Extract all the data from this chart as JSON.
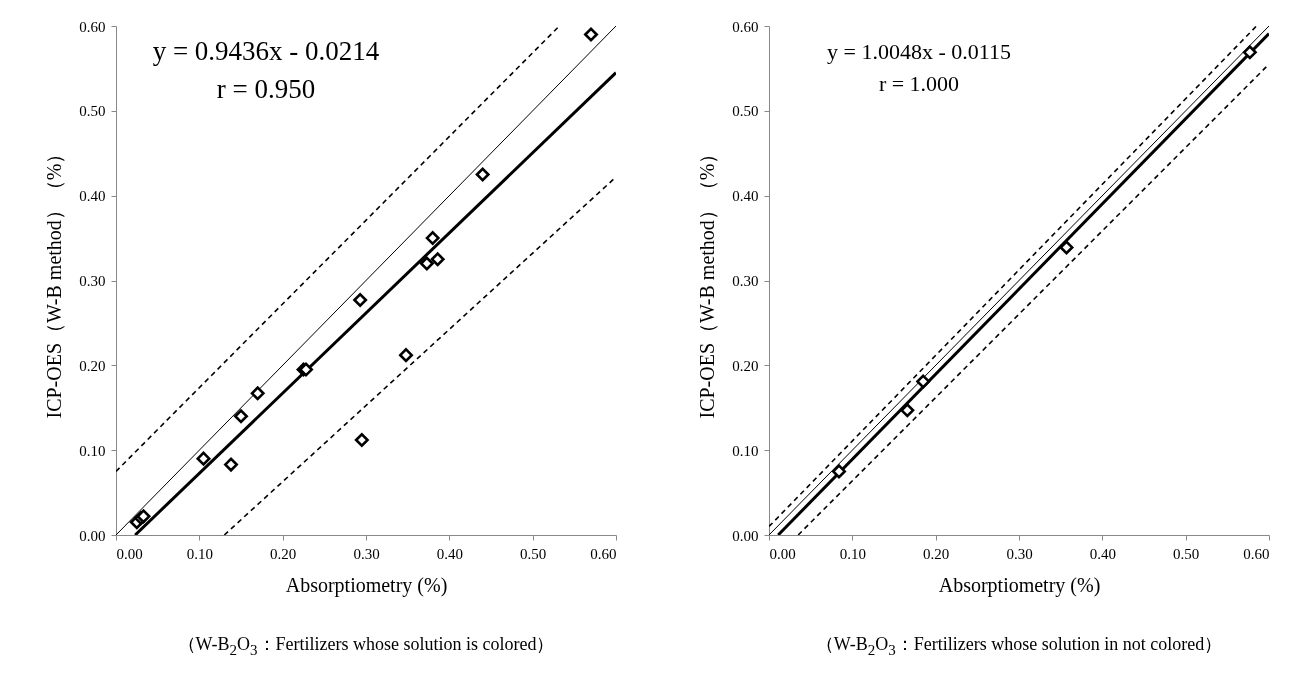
{
  "chart_data": [
    {
      "type": "scatter",
      "xlabel": "Absorptiometry (%)",
      "ylabel": "ICP-OES（W-B method）（%）",
      "xlim": [
        0,
        0.6
      ],
      "ylim": [
        0,
        0.6
      ],
      "xticks": [
        {
          "value": 0,
          "label": "0.00"
        },
        {
          "value": 0.1,
          "label": "0.10"
        },
        {
          "value": 0.2,
          "label": "0.20"
        },
        {
          "value": 0.3,
          "label": "0.30"
        },
        {
          "value": 0.4,
          "label": "0.40"
        },
        {
          "value": 0.5,
          "label": "0.50"
        },
        {
          "value": 0.6,
          "label": "0.60"
        }
      ],
      "yticks": [
        {
          "value": 0,
          "label": "0.00"
        },
        {
          "value": 0.1,
          "label": "0.10"
        },
        {
          "value": 0.2,
          "label": "0.20"
        },
        {
          "value": 0.3,
          "label": "0.30"
        },
        {
          "value": 0.4,
          "label": "0.40"
        },
        {
          "value": 0.5,
          "label": "0.50"
        },
        {
          "value": 0.6,
          "label": "0.60"
        }
      ],
      "marker": "diamond",
      "annotations": [
        "y = 0.9436x - 0.0214",
        "r = 0.950",
        "（W-B$_{2}$O$_{3}$：Fertilizers whose solution is colored）"
      ],
      "series": [
        {
          "color": "#000000",
          "x": [
            0.025,
            0.03,
            0.033,
            0.105,
            0.138,
            0.15,
            0.17,
            0.225,
            0.228,
            0.293,
            0.295,
            0.348,
            0.373,
            0.38,
            0.386,
            0.44,
            0.57
          ],
          "values": [
            0.015,
            0.02,
            0.022,
            0.09,
            0.083,
            0.14,
            0.167,
            0.195,
            0.195,
            0.277,
            0.112,
            0.212,
            0.32,
            0.35,
            0.325,
            0.425,
            0.59
          ]
        },
        {
          "type": "line",
          "marker": "none",
          "color": "#000000",
          "x": [
            0.023,
            0.6
          ],
          "values": [
            0,
            0.545
          ]
        },
        {
          "type": "line",
          "marker": "none",
          "color": "#000000",
          "x": [
            0,
            0.6
          ],
          "values": [
            0,
            0.6
          ]
        },
        {
          "type": "line",
          "marker": "none",
          "color": "#000000",
          "line_style": "dashed",
          "x": [
            0,
            0.532
          ],
          "values": [
            0.075,
            0.6
          ]
        },
        {
          "type": "line",
          "marker": "none",
          "color": "#000000",
          "line_style": "dashed",
          "x": [
            0.13,
            0.6
          ],
          "values": [
            0,
            0.422
          ]
        }
      ]
    },
    {
      "type": "scatter",
      "xlabel": "Absorptiometry (%)",
      "ylabel": "ICP-OES（W-B method）（%）",
      "xlim": [
        0,
        0.6
      ],
      "ylim": [
        0,
        0.6
      ],
      "xticks": [
        {
          "value": 0,
          "label": "0.00"
        },
        {
          "value": 0.1,
          "label": "0.10"
        },
        {
          "value": 0.2,
          "label": "0.20"
        },
        {
          "value": 0.3,
          "label": "0.30"
        },
        {
          "value": 0.4,
          "label": "0.40"
        },
        {
          "value": 0.5,
          "label": "0.50"
        },
        {
          "value": 0.6,
          "label": "0.60"
        }
      ],
      "yticks": [
        {
          "value": 0,
          "label": "0.00"
        },
        {
          "value": 0.1,
          "label": "0.10"
        },
        {
          "value": 0.2,
          "label": "0.20"
        },
        {
          "value": 0.3,
          "label": "0.30"
        },
        {
          "value": 0.4,
          "label": "0.40"
        },
        {
          "value": 0.5,
          "label": "0.50"
        },
        {
          "value": 0.6,
          "label": "0.60"
        }
      ],
      "marker": "diamond",
      "annotations": [
        "y = 1.0048x - 0.0115",
        "r = 1.000",
        "（W-B$_{2}$O$_{3}$：Fertilizers whose solution in not colored）"
      ],
      "series": [
        {
          "color": "#000000",
          "x": [
            0.084,
            0.166,
            0.185,
            0.357,
            0.577
          ],
          "values": [
            0.075,
            0.147,
            0.181,
            0.339,
            0.569
          ]
        },
        {
          "type": "line",
          "marker": "none",
          "color": "#000000",
          "x": [
            0.011,
            0.6
          ],
          "values": [
            0,
            0.591
          ]
        },
        {
          "type": "line",
          "marker": "none",
          "color": "#000000",
          "x": [
            0,
            0.6
          ],
          "values": [
            0,
            0.6
          ]
        },
        {
          "type": "line",
          "marker": "none",
          "color": "#000000",
          "line_style": "dashed",
          "x": [
            0,
            0.585
          ],
          "values": [
            0.01,
            0.6
          ]
        },
        {
          "type": "line",
          "marker": "none",
          "color": "#000000",
          "line_style": "dashed",
          "x": [
            0.035,
            0.6
          ],
          "values": [
            0,
            0.555
          ]
        }
      ]
    }
  ]
}
